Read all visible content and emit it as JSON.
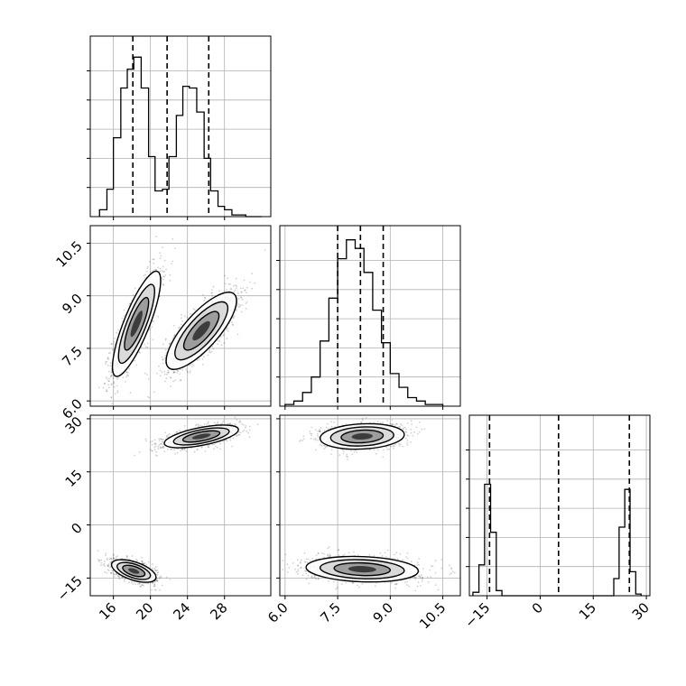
{
  "chart_data": {
    "type": "corner",
    "figure_background": "#ffffff",
    "line_color": "#000000",
    "grid": true,
    "parameters": [
      {
        "id": "p0",
        "range": [
          13.5,
          33.0
        ],
        "ticks": [
          16,
          20,
          24,
          28
        ],
        "tick_labels": [
          "16",
          "20",
          "24",
          "28"
        ],
        "quantiles": [
          18.1,
          21.8,
          26.3
        ],
        "hist_y_max": 1.0,
        "hist": {
          "edges": [
            14.5,
            15.3,
            16.0,
            16.8,
            17.5,
            18.2,
            19.0,
            19.8,
            20.5,
            21.3,
            22.0,
            22.8,
            23.5,
            24.2,
            25.0,
            25.8,
            26.5,
            27.3,
            28.0,
            28.8,
            29.5,
            30.3,
            31.0,
            32.0
          ],
          "counts": [
            0.04,
            0.16,
            0.46,
            0.75,
            0.86,
            0.93,
            0.75,
            0.35,
            0.15,
            0.16,
            0.35,
            0.59,
            0.76,
            0.75,
            0.61,
            0.34,
            0.15,
            0.06,
            0.04,
            0.01,
            0.01,
            0.0,
            0.0
          ]
        }
      },
      {
        "id": "p1",
        "range": [
          5.85,
          11.0
        ],
        "ticks": [
          6.0,
          7.5,
          9.0,
          10.5
        ],
        "tick_labels": [
          "6.0",
          "7.5",
          "9.0",
          "10.5"
        ],
        "quantiles": [
          7.5,
          8.15,
          8.8
        ],
        "hist_y_max": 1.0,
        "hist": {
          "edges": [
            6.0,
            6.25,
            6.5,
            6.75,
            7.0,
            7.25,
            7.5,
            7.75,
            8.0,
            8.25,
            8.5,
            8.75,
            9.0,
            9.25,
            9.5,
            9.75,
            10.0,
            10.25,
            10.5
          ],
          "counts": [
            0.01,
            0.03,
            0.08,
            0.17,
            0.38,
            0.63,
            0.86,
            0.97,
            0.92,
            0.78,
            0.56,
            0.37,
            0.19,
            0.11,
            0.05,
            0.03,
            0.01,
            0.01
          ]
        }
      },
      {
        "id": "p2",
        "range": [
          -20.0,
          31.0
        ],
        "ticks": [
          -15,
          0,
          15,
          30
        ],
        "tick_labels": [
          "−15",
          "0",
          "15",
          "30"
        ],
        "quantiles": [
          -14.3,
          5.2,
          25.2
        ],
        "hist_y_max": 1.0,
        "hist": {
          "edges": [
            -19.0,
            -17.3,
            -15.7,
            -14.0,
            -12.4,
            -10.8,
            -9.2,
            -7.5,
            20.8,
            22.3,
            23.9,
            25.4,
            27.0,
            28.5
          ],
          "counts": [
            0.02,
            0.18,
            0.65,
            0.37,
            0.03,
            0.0,
            0.0,
            0.0,
            0.1,
            0.4,
            0.62,
            0.14,
            0.01
          ]
        }
      }
    ],
    "pairs": [
      {
        "x_param": 0,
        "y_param": 1,
        "clusters": [
          {
            "center": [
              18.5,
              8.2
            ],
            "sx": 1.3,
            "sy": 0.75,
            "corr": 0.82,
            "n": 1300
          },
          {
            "center": [
              25.5,
              8.0
            ],
            "sx": 1.9,
            "sy": 0.55,
            "corr": 0.78,
            "n": 1300
          }
        ]
      },
      {
        "x_param": 0,
        "y_param": 2,
        "clusters": [
          {
            "center": [
              25.5,
              25.0
            ],
            "sx": 2.0,
            "sy": 1.6,
            "corr": 0.6,
            "n": 1200
          },
          {
            "center": [
              18.2,
              -13.0
            ],
            "sx": 1.2,
            "sy": 1.6,
            "corr": -0.55,
            "n": 1200
          }
        ]
      },
      {
        "x_param": 1,
        "y_param": 2,
        "clusters": [
          {
            "center": [
              8.2,
              25.0
            ],
            "sx": 0.6,
            "sy": 1.8,
            "corr": 0.15,
            "n": 1200
          },
          {
            "center": [
              8.2,
              -12.5
            ],
            "sx": 0.8,
            "sy": 1.8,
            "corr": -0.15,
            "n": 1200
          }
        ]
      }
    ]
  }
}
